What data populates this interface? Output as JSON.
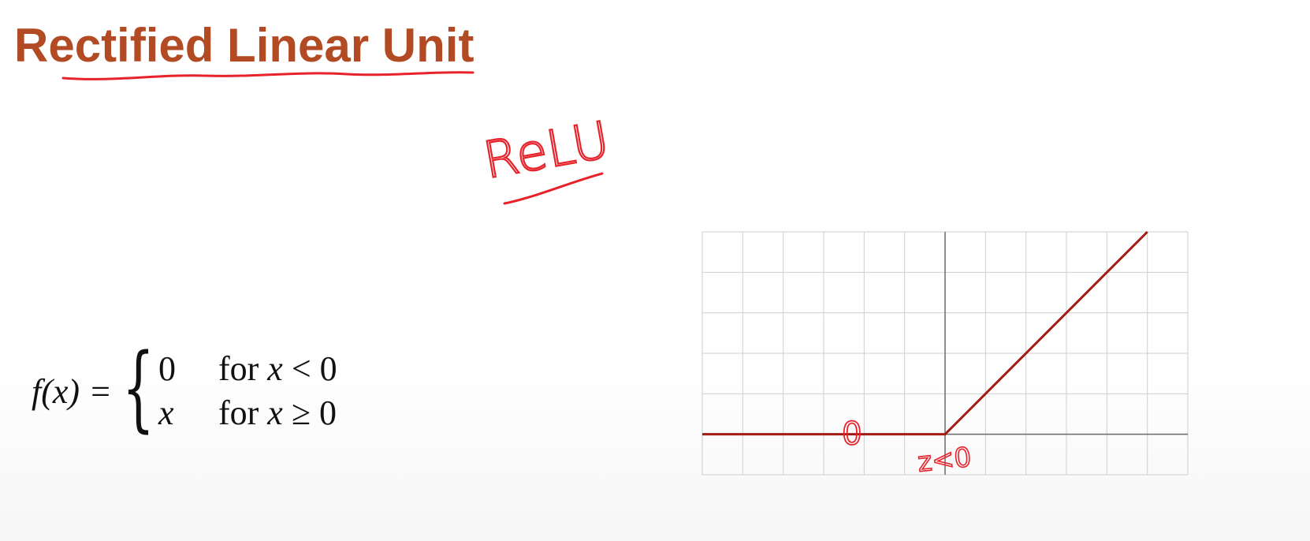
{
  "slide": {
    "title": "Rectified Linear Unit",
    "handwriting": {
      "relu_label": "ReLU",
      "zero_label": "0",
      "z_label": "z<0"
    }
  },
  "formula": {
    "lhs": "f(x)",
    "eq": "=",
    "cases": [
      {
        "value": "0",
        "for_word": "for",
        "var": "x",
        "rel": "<",
        "rhs": "0"
      },
      {
        "value": "x",
        "for_word": "for",
        "var": "x",
        "rel": "≥",
        "rhs": "0"
      }
    ]
  },
  "chart_data": {
    "type": "line",
    "title": "",
    "xlabel": "",
    "ylabel": "",
    "xlim": [
      -6,
      6
    ],
    "ylim": [
      -1,
      5
    ],
    "grid": true,
    "series": [
      {
        "x": [
          -6,
          0,
          5
        ],
        "y": [
          0,
          0,
          5
        ]
      }
    ],
    "colors": {
      "line": "#a11c12",
      "grid": "#cfcfcf",
      "axis": "#6a6a6a"
    }
  },
  "colors": {
    "title": "#b24a24",
    "annotation": "#e8222a"
  }
}
